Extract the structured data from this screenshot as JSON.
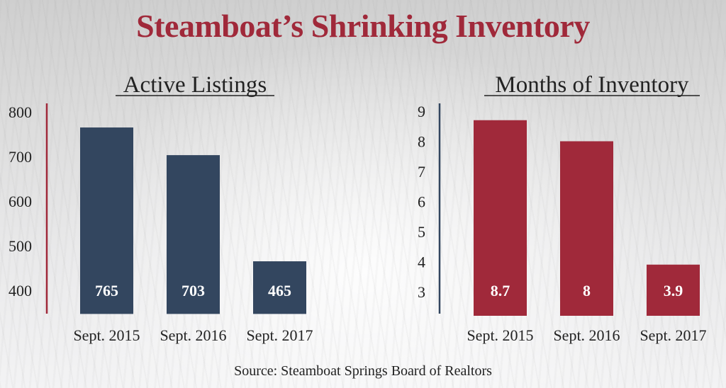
{
  "page_title": "Steamboat’s Shrinking Inventory",
  "source": "Source: Steamboat Springs Board of Realtors",
  "colors": {
    "title": "#a0293a",
    "listings_bar": "#33465f",
    "inventory_bar": "#a0293a",
    "label_text": "#ffffff"
  },
  "chart_data": [
    {
      "type": "bar",
      "title": "Active Listings",
      "categories": [
        "Sept. 2015",
        "Sept. 2016",
        "Sept. 2017"
      ],
      "values": [
        765,
        703,
        465
      ],
      "data_labels": [
        "765",
        "703",
        "465"
      ],
      "ylim": [
        400,
        800
      ],
      "yticks": [
        400,
        500,
        600,
        700,
        800
      ],
      "baseline_value": 347,
      "grid": false,
      "legend": "none"
    },
    {
      "type": "bar",
      "title": "Months of Inventory",
      "categories": [
        "Sept. 2015",
        "Sept. 2016",
        "Sept. 2017"
      ],
      "values": [
        8.7,
        8,
        3.9
      ],
      "data_labels": [
        "8.7",
        "8",
        "3.9"
      ],
      "ylim": [
        3,
        9
      ],
      "yticks": [
        3,
        4,
        5,
        6,
        7,
        8,
        9
      ],
      "baseline_value": 2.2,
      "grid": false,
      "legend": "none"
    }
  ]
}
